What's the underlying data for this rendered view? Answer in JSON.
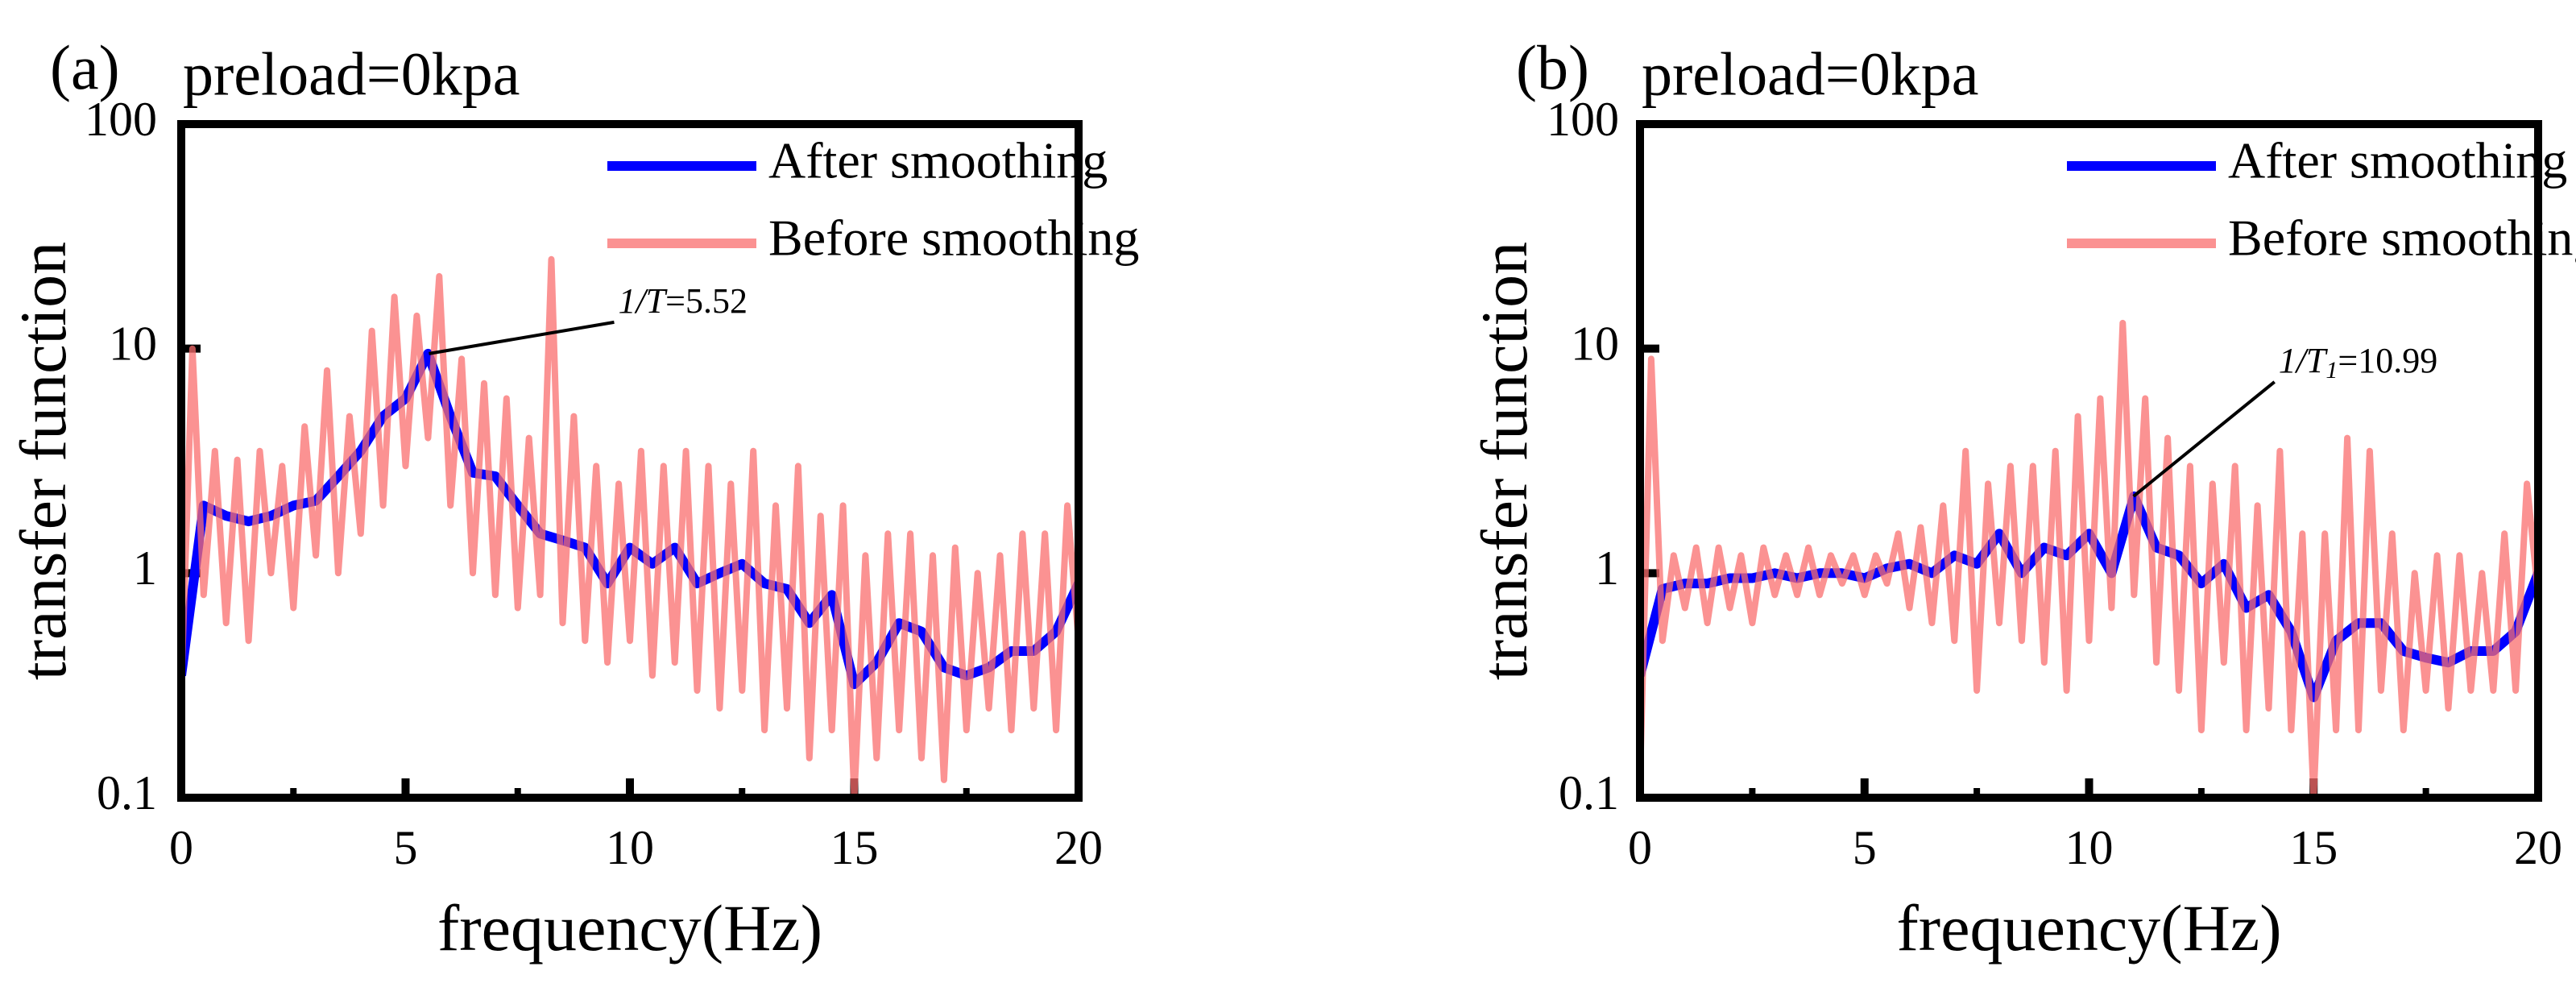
{
  "chart_data": [
    {
      "type": "line",
      "panel_label": "(a)",
      "title": "preload=0kpa",
      "x_label": "frequency(Hz)",
      "y_label": "transfer function",
      "xlim": [
        0,
        20
      ],
      "xticks": [
        0,
        5,
        10,
        15,
        20
      ],
      "xminor_ticks": [
        2.5,
        7.5,
        12.5,
        17.5
      ],
      "ylim": [
        0.1,
        100
      ],
      "yticks": [
        0.1,
        1,
        10,
        100
      ],
      "ylog": true,
      "legend": "upper right",
      "series": [
        {
          "name": "After smoothing",
          "color": "#0000ff",
          "opacity": 1,
          "x": [
            0,
            0.5,
            1,
            1.5,
            2,
            2.5,
            3,
            3.5,
            4,
            4.5,
            5,
            5.5,
            6,
            6.5,
            7,
            7.5,
            8,
            8.5,
            9,
            9.5,
            10,
            10.5,
            11,
            11.5,
            12,
            12.5,
            13,
            13.5,
            14,
            14.5,
            15,
            15.5,
            16,
            16.5,
            17,
            17.5,
            18,
            18.5,
            19,
            19.5,
            20
          ],
          "values": [
            0.35,
            2.0,
            1.8,
            1.7,
            1.8,
            2.0,
            2.1,
            2.7,
            3.5,
            5.0,
            6.0,
            9.5,
            5.0,
            2.8,
            2.7,
            2.0,
            1.5,
            1.4,
            1.3,
            0.9,
            1.3,
            1.1,
            1.3,
            0.9,
            1.0,
            1.1,
            0.9,
            0.85,
            0.6,
            0.8,
            0.32,
            0.4,
            0.6,
            0.55,
            0.38,
            0.35,
            0.38,
            0.45,
            0.45,
            0.55,
            0.9
          ]
        },
        {
          "name": "Before smoothing",
          "color": "#fa6e6e",
          "opacity": 0.75,
          "x": [
            0,
            0.25,
            0.5,
            0.75,
            1,
            1.25,
            1.5,
            1.75,
            2,
            2.25,
            2.5,
            2.75,
            3,
            3.25,
            3.5,
            3.75,
            4,
            4.25,
            4.5,
            4.75,
            5,
            5.25,
            5.5,
            5.75,
            6,
            6.25,
            6.5,
            6.75,
            7,
            7.25,
            7.5,
            7.75,
            8,
            8.25,
            8.5,
            8.75,
            9,
            9.25,
            9.5,
            9.75,
            10,
            10.25,
            10.5,
            10.75,
            11,
            11.25,
            11.5,
            11.75,
            12,
            12.25,
            12.5,
            12.75,
            13,
            13.25,
            13.5,
            13.75,
            14,
            14.25,
            14.5,
            14.75,
            15,
            15.25,
            15.5,
            15.75,
            16,
            16.25,
            16.5,
            16.75,
            17,
            17.25,
            17.5,
            17.75,
            18,
            18.25,
            18.5,
            18.75,
            19,
            19.25,
            19.5,
            19.75,
            20
          ],
          "values": [
            0.3,
            10,
            0.8,
            3.5,
            0.6,
            3.2,
            0.5,
            3.5,
            1.0,
            3.0,
            0.7,
            4.5,
            1.2,
            8,
            1.0,
            5,
            1.5,
            12,
            2,
            17,
            3,
            14,
            4,
            21,
            2,
            9,
            1,
            7,
            0.8,
            6,
            0.7,
            4,
            0.8,
            25,
            0.6,
            5,
            0.5,
            3,
            0.4,
            2.5,
            0.5,
            3.5,
            0.35,
            3,
            0.4,
            3.5,
            0.3,
            3,
            0.25,
            2.5,
            0.3,
            3.5,
            0.2,
            2,
            0.25,
            3,
            0.15,
            1.8,
            0.2,
            2,
            0.1,
            1.2,
            0.15,
            1.5,
            0.2,
            1.5,
            0.15,
            1.2,
            0.12,
            1.3,
            0.2,
            1,
            0.25,
            1.2,
            0.2,
            1.5,
            0.25,
            1.5,
            0.2,
            2,
            0.5
          ]
        }
      ],
      "annotation": {
        "prefix": "1/T",
        "subscript": null,
        "value_label": "=5.52",
        "x": 5.52,
        "y": 9.5
      }
    },
    {
      "type": "line",
      "panel_label": "(b)",
      "title": "preload=0kpa",
      "x_label": "frequency(Hz)",
      "y_label": "transfer function",
      "xlim": [
        0,
        20
      ],
      "xticks": [
        0,
        5,
        10,
        15,
        20
      ],
      "xminor_ticks": [
        2.5,
        7.5,
        12.5,
        17.5
      ],
      "ylim": [
        0.1,
        100
      ],
      "yticks": [
        0.1,
        1,
        10,
        100
      ],
      "ylog": true,
      "legend": "upper right",
      "series": [
        {
          "name": "After smoothing",
          "color": "#0000ff",
          "opacity": 1,
          "x": [
            0,
            0.5,
            1,
            1.5,
            2,
            2.5,
            3,
            3.5,
            4,
            4.5,
            5,
            5.5,
            6,
            6.5,
            7,
            7.5,
            8,
            8.5,
            9,
            9.5,
            10,
            10.5,
            11,
            11.5,
            12,
            12.5,
            13,
            13.5,
            14,
            14.5,
            15,
            15.5,
            16,
            16.5,
            17,
            17.5,
            18,
            18.5,
            19,
            19.5,
            20
          ],
          "values": [
            0.35,
            0.85,
            0.9,
            0.9,
            0.95,
            0.95,
            1.0,
            0.95,
            1.0,
            1.0,
            0.95,
            1.05,
            1.1,
            1.0,
            1.2,
            1.1,
            1.5,
            1.0,
            1.3,
            1.2,
            1.5,
            1.0,
            2.2,
            1.3,
            1.2,
            0.9,
            1.1,
            0.7,
            0.8,
            0.55,
            0.28,
            0.5,
            0.6,
            0.6,
            0.45,
            0.42,
            0.4,
            0.45,
            0.45,
            0.55,
            1.0
          ]
        },
        {
          "name": "Before smoothing",
          "color": "#fa6e6e",
          "opacity": 0.75,
          "x": [
            0,
            0.25,
            0.5,
            0.75,
            1,
            1.25,
            1.5,
            1.75,
            2,
            2.25,
            2.5,
            2.75,
            3,
            3.25,
            3.5,
            3.75,
            4,
            4.25,
            4.5,
            4.75,
            5,
            5.25,
            5.5,
            5.75,
            6,
            6.25,
            6.5,
            6.75,
            7,
            7.25,
            7.5,
            7.75,
            8,
            8.25,
            8.5,
            8.75,
            9,
            9.25,
            9.5,
            9.75,
            10,
            10.25,
            10.5,
            10.75,
            11,
            11.25,
            11.5,
            11.75,
            12,
            12.25,
            12.5,
            12.75,
            13,
            13.25,
            13.5,
            13.75,
            14,
            14.25,
            14.5,
            14.75,
            15,
            15.25,
            15.5,
            15.75,
            16,
            16.25,
            16.5,
            16.75,
            17,
            17.25,
            17.5,
            17.75,
            18,
            18.25,
            18.5,
            18.75,
            19,
            19.25,
            19.5,
            19.75,
            20
          ],
          "values": [
            0.12,
            9,
            0.5,
            1.2,
            0.7,
            1.3,
            0.6,
            1.3,
            0.7,
            1.2,
            0.6,
            1.3,
            0.8,
            1.2,
            0.8,
            1.3,
            0.8,
            1.2,
            0.9,
            1.2,
            0.8,
            1.2,
            0.9,
            1.5,
            0.7,
            1.6,
            0.6,
            2,
            0.5,
            3.5,
            0.3,
            2.5,
            0.6,
            3,
            0.5,
            3,
            0.4,
            3.5,
            0.3,
            5,
            0.5,
            6,
            0.7,
            13,
            0.8,
            6,
            0.4,
            4,
            0.3,
            3,
            0.2,
            2.5,
            0.4,
            3,
            0.2,
            2,
            0.25,
            3.5,
            0.2,
            1.5,
            0.1,
            1.5,
            0.2,
            4,
            0.2,
            3.5,
            0.3,
            1.5,
            0.2,
            1,
            0.3,
            1.2,
            0.25,
            1.2,
            0.3,
            1,
            0.3,
            1.5,
            0.3,
            2.5,
            0.8
          ]
        }
      ],
      "annotation": {
        "prefix": "1/T",
        "subscript": "1",
        "value_label": "=10.99",
        "x": 10.99,
        "y": 2.2
      }
    }
  ]
}
